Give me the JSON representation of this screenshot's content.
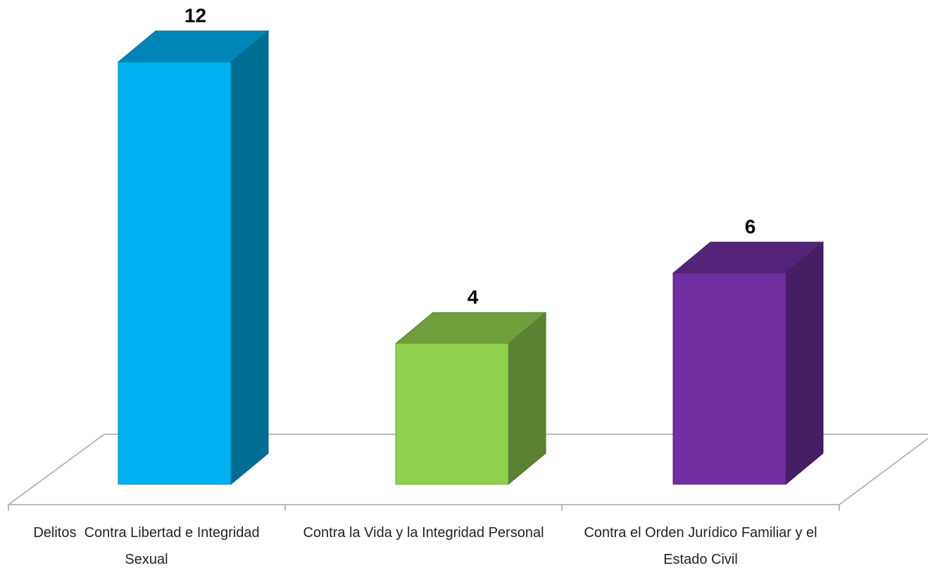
{
  "chart_data": {
    "type": "bar3d",
    "categories": [
      "Delitos  Contra Libertad e Integridad Sexual",
      "Contra la Vida y la Integridad Personal",
      "Contra el Orden Jurídico Familiar y el Estado Civil"
    ],
    "values": [
      12,
      4,
      6
    ],
    "colors": [
      "#00b0f0",
      "#92d050",
      "#7030a0"
    ]
  }
}
